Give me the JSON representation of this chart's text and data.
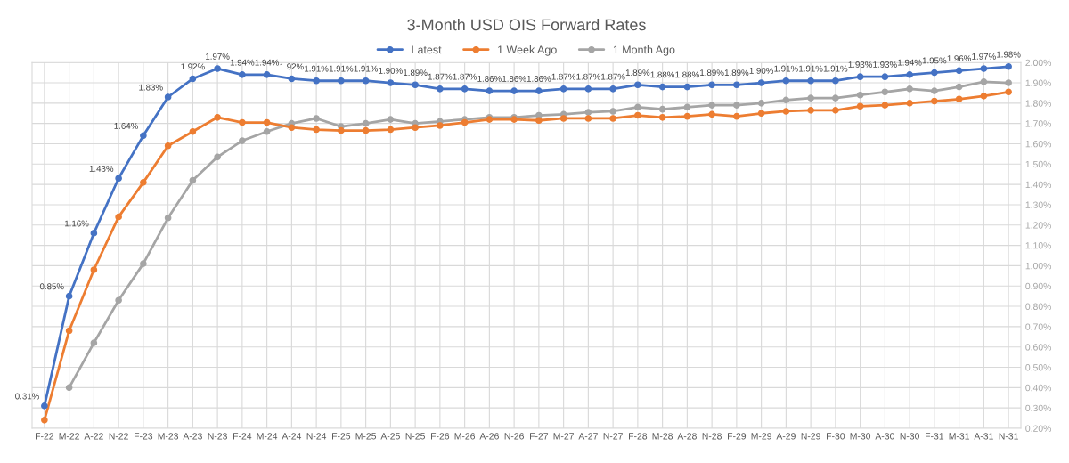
{
  "chart_data": {
    "type": "line",
    "title": "3-Month USD OIS Forward Rates",
    "categories": [
      "F-22",
      "M-22",
      "A-22",
      "N-22",
      "F-23",
      "M-23",
      "A-23",
      "N-23",
      "F-24",
      "M-24",
      "A-24",
      "N-24",
      "F-25",
      "M-25",
      "A-25",
      "N-25",
      "F-26",
      "M-26",
      "A-26",
      "N-26",
      "F-27",
      "M-27",
      "A-27",
      "N-27",
      "F-28",
      "M-28",
      "A-28",
      "N-28",
      "F-29",
      "M-29",
      "A-29",
      "N-29",
      "F-30",
      "M-30",
      "A-30",
      "N-30",
      "F-31",
      "M-31",
      "A-31",
      "N-31"
    ],
    "series": [
      {
        "name": "Latest",
        "color": "#4472c4",
        "values": [
          0.31,
          0.85,
          1.16,
          1.43,
          1.64,
          1.83,
          1.92,
          1.97,
          1.94,
          1.94,
          1.92,
          1.91,
          1.91,
          1.91,
          1.9,
          1.89,
          1.87,
          1.87,
          1.86,
          1.86,
          1.86,
          1.87,
          1.87,
          1.87,
          1.89,
          1.88,
          1.88,
          1.89,
          1.89,
          1.9,
          1.91,
          1.91,
          1.91,
          1.93,
          1.93,
          1.94,
          1.95,
          1.96,
          1.97,
          1.98
        ],
        "value_labels": [
          "0.31%",
          "0.85%",
          "1.16%",
          "1.43%",
          "1.64%",
          "1.83%",
          "1.92%",
          "1.97%",
          "1.94%",
          "1.94%",
          "1.92%",
          "1.91%",
          "1.91%",
          "1.91%",
          "1.90%",
          "1.89%",
          "1.87%",
          "1.87%",
          "1.86%",
          "1.86%",
          "1.86%",
          "1.87%",
          "1.87%",
          "1.87%",
          "1.89%",
          "1.88%",
          "1.88%",
          "1.89%",
          "1.89%",
          "1.90%",
          "1.91%",
          "1.91%",
          "1.91%",
          "1.93%",
          "1.93%",
          "1.94%",
          "1.95%",
          "1.96%",
          "1.97%",
          "1.98%"
        ]
      },
      {
        "name": "1 Week Ago",
        "color": "#ed7d31",
        "values": [
          0.24,
          0.68,
          0.98,
          1.24,
          1.41,
          1.59,
          1.66,
          1.73,
          1.705,
          1.705,
          1.68,
          1.67,
          1.665,
          1.665,
          1.67,
          1.68,
          1.69,
          1.705,
          1.72,
          1.72,
          1.715,
          1.725,
          1.725,
          1.725,
          1.74,
          1.73,
          1.735,
          1.745,
          1.735,
          1.75,
          1.76,
          1.765,
          1.765,
          1.785,
          1.79,
          1.8,
          1.81,
          1.82,
          1.835,
          1.855
        ]
      },
      {
        "name": "1 Month Ago",
        "color": "#a5a5a5",
        "values": [
          null,
          0.4,
          0.62,
          0.83,
          1.01,
          1.235,
          1.42,
          1.535,
          1.615,
          1.66,
          1.7,
          1.725,
          1.685,
          1.7,
          1.72,
          1.7,
          1.71,
          1.72,
          1.73,
          1.73,
          1.74,
          1.745,
          1.755,
          1.76,
          1.78,
          1.77,
          1.78,
          1.79,
          1.79,
          1.8,
          1.815,
          1.825,
          1.825,
          1.84,
          1.855,
          1.87,
          1.86,
          1.88,
          1.905,
          1.9
        ]
      }
    ],
    "ylim": [
      0.2,
      2.0
    ],
    "yticks": [
      {
        "value": 0.2,
        "label": "0.20%"
      },
      {
        "value": 0.3,
        "label": "0.30%"
      },
      {
        "value": 0.4,
        "label": "0.40%"
      },
      {
        "value": 0.5,
        "label": "0.50%"
      },
      {
        "value": 0.6,
        "label": "0.60%"
      },
      {
        "value": 0.7,
        "label": "0.70%"
      },
      {
        "value": 0.8,
        "label": "0.80%"
      },
      {
        "value": 0.9,
        "label": "0.90%"
      },
      {
        "value": 1.0,
        "label": "1.00%"
      },
      {
        "value": 1.1,
        "label": "1.10%"
      },
      {
        "value": 1.2,
        "label": "1.20%"
      },
      {
        "value": 1.3,
        "label": "1.30%"
      },
      {
        "value": 1.4,
        "label": "1.40%"
      },
      {
        "value": 1.5,
        "label": "1.50%"
      },
      {
        "value": 1.6,
        "label": "1.60%"
      },
      {
        "value": 1.7,
        "label": "1.70%"
      },
      {
        "value": 1.8,
        "label": "1.80%"
      },
      {
        "value": 1.9,
        "label": "1.90%"
      },
      {
        "value": 2.0,
        "label": "2.00%"
      }
    ],
    "grid": true,
    "legend": "top",
    "marker": "circle",
    "line_style": "solid"
  }
}
